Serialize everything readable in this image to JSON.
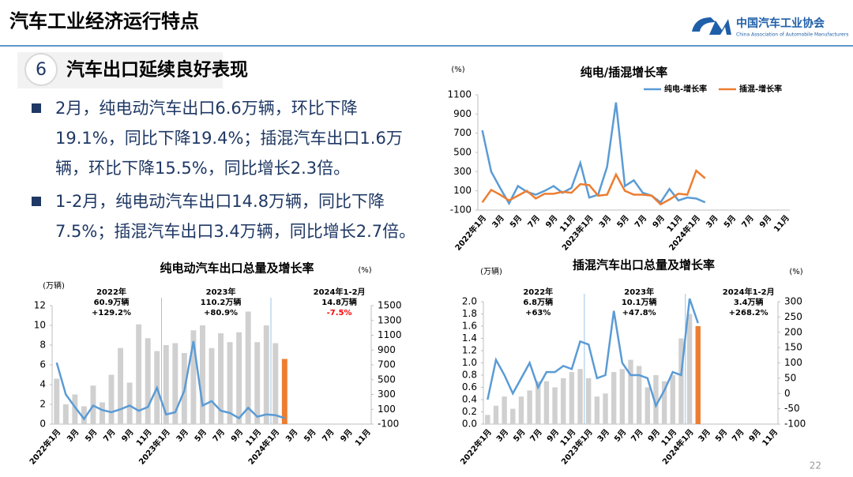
{
  "header": {
    "title": "汽车工业经济运行特点",
    "logo_cn": "中国汽车工业协会",
    "logo_en": "China Association of Automobile Manufacturers"
  },
  "section": {
    "number": "6",
    "title": "汽车出口延续良好表现"
  },
  "bullets": [
    "2月，纯电动汽车出口6.6万辆，环比下降19.1%，同比下降19.4%；插混汽车出口1.6万辆，环比下降15.5%，同比增长2.3倍。",
    "1-2月，纯电动汽车出口14.8万辆，同比下降7.5%；插混汽车出口3.4万辆，同比增长2.7倍。"
  ],
  "page_number": "22",
  "chart_data": [
    {
      "type": "line",
      "title": "纯电/插混增长率",
      "y_label": "(%)",
      "categories": [
        "2022年1月",
        null,
        "3月",
        null,
        "5月",
        null,
        "7月",
        null,
        "9月",
        null,
        "11月",
        null,
        "2023年1月",
        null,
        "3月",
        null,
        "5月",
        null,
        "7月",
        null,
        "9月",
        null,
        "11月",
        null,
        "2024年1月",
        null,
        "3月",
        null,
        "5月",
        null,
        "7月",
        null,
        "9月",
        null,
        "11月"
      ],
      "ylim": [
        -100,
        1100
      ],
      "yticks": [
        -100,
        100,
        300,
        500,
        700,
        900,
        1100
      ],
      "legend": "top-right",
      "series": [
        {
          "name": "纯电-增长率",
          "color": "#5b9bd5",
          "values": [
            730,
            300,
            130,
            -30,
            150,
            90,
            60,
            100,
            150,
            80,
            130,
            390,
            30,
            60,
            350,
            1020,
            150,
            210,
            80,
            50,
            -20,
            120,
            0,
            30,
            20,
            -19.4,
            null,
            null,
            null,
            null,
            null,
            null,
            null,
            null,
            null
          ]
        },
        {
          "name": "插混-增长率",
          "color": "#ed7d31",
          "values": [
            -20,
            110,
            60,
            0,
            50,
            100,
            20,
            70,
            70,
            90,
            80,
            170,
            160,
            50,
            60,
            270,
            100,
            60,
            60,
            50,
            -40,
            10,
            70,
            60,
            310,
            230,
            null,
            null,
            null,
            null,
            null,
            null,
            null,
            null,
            null
          ]
        }
      ]
    },
    {
      "type": "combo",
      "title": "纯电动汽车出口总量及增长率",
      "y_label": "(万辆)",
      "y2_label": "(%)",
      "categories": [
        "2022年1月",
        null,
        "3月",
        null,
        "5月",
        null,
        "7月",
        null,
        "9月",
        null,
        "11月",
        null,
        "2023年1月",
        null,
        "3月",
        null,
        "5月",
        null,
        "7月",
        null,
        "9月",
        null,
        "11月",
        null,
        "2024年1月",
        null,
        "3月",
        null,
        "5月",
        null,
        "7月",
        null,
        "9月",
        null,
        "11月"
      ],
      "ylim": [
        0,
        12
      ],
      "yticks": [
        0,
        2,
        4,
        6,
        8,
        10,
        12
      ],
      "y2lim": [
        -100,
        1500
      ],
      "y2ticks": [
        -100,
        100,
        300,
        500,
        700,
        900,
        1100,
        1300,
        1500
      ],
      "series": [
        {
          "type": "bar",
          "color": "#d0d0d0",
          "values": [
            4.6,
            2.0,
            3.0,
            1.8,
            3.9,
            2.2,
            5.0,
            7.7,
            4.2,
            10.1,
            8.7,
            7.4,
            8.0,
            8.2,
            7.2,
            9.5,
            10.0,
            7.7,
            9.2,
            8.3,
            9.3,
            11.4,
            8.3,
            10.0,
            8.2,
            null,
            null,
            null,
            null,
            null,
            null,
            null,
            null,
            null,
            null
          ]
        },
        {
          "type": "bar",
          "color": "#ed7d31",
          "values": [
            null,
            null,
            null,
            null,
            null,
            null,
            null,
            null,
            null,
            null,
            null,
            null,
            null,
            null,
            null,
            null,
            null,
            null,
            null,
            null,
            null,
            null,
            null,
            null,
            null,
            6.6,
            null,
            null,
            null,
            null,
            null,
            null,
            null,
            null,
            null
          ]
        },
        {
          "type": "line",
          "axis": "y2",
          "color": "#5b9bd5",
          "values": [
            730,
            300,
            130,
            -30,
            150,
            90,
            60,
            100,
            150,
            80,
            130,
            390,
            30,
            60,
            350,
            1020,
            150,
            210,
            80,
            50,
            -20,
            120,
            0,
            30,
            20,
            -19.4,
            null,
            null,
            null,
            null,
            null,
            null,
            null,
            null,
            null
          ]
        }
      ],
      "annotations": [
        {
          "lines": [
            "2022年",
            "60.9万辆"
          ],
          "change": "+129.2%"
        },
        {
          "lines": [
            "2023年",
            "110.2万辆"
          ],
          "change": "+80.9%"
        },
        {
          "lines": [
            "2024年1-2月",
            "14.8万辆"
          ],
          "change": "-7.5%",
          "change_color": "#ff0000"
        }
      ]
    },
    {
      "type": "combo",
      "title": "插混汽车出口总量及增长率",
      "y_label": "(万辆)",
      "y2_label": "(%)",
      "categories": [
        "2022年1月",
        null,
        "3月",
        null,
        "5月",
        null,
        "7月",
        null,
        "9月",
        null,
        "11月",
        null,
        "2023年1月",
        null,
        "3月",
        null,
        "5月",
        null,
        "7月",
        null,
        "9月",
        null,
        "11月",
        null,
        "2024年1月",
        null,
        "3月",
        null,
        "5月",
        null,
        "7月",
        null,
        "9月",
        null,
        "11月"
      ],
      "ylim": [
        0,
        2
      ],
      "yticks": [
        {
          "value": 0,
          "label": "0.0"
        },
        0.2,
        0.4,
        0.6,
        0.8,
        {
          "value": 1,
          "label": "1.0"
        },
        1.2,
        1.4,
        1.6,
        1.8,
        {
          "value": 2,
          "label": "2.0"
        }
      ],
      "y2lim": [
        -100,
        300
      ],
      "y2ticks": [
        -100,
        -50,
        0,
        50,
        100,
        150,
        200,
        250,
        300
      ],
      "series": [
        {
          "type": "bar",
          "color": "#d0d0d0",
          "values": [
            0.15,
            0.3,
            0.45,
            0.25,
            0.45,
            0.55,
            0.7,
            0.7,
            0.6,
            0.75,
            0.85,
            0.9,
            0.75,
            0.45,
            0.5,
            0.85,
            0.9,
            1.05,
            0.95,
            0.6,
            0.8,
            0.7,
            0.8,
            1.4,
            1.8,
            null,
            null,
            null,
            null,
            null,
            null,
            null,
            null,
            null,
            null
          ]
        },
        {
          "type": "bar",
          "color": "#ed7d31",
          "values": [
            null,
            null,
            null,
            null,
            null,
            null,
            null,
            null,
            null,
            null,
            null,
            null,
            null,
            null,
            null,
            null,
            null,
            null,
            null,
            null,
            null,
            null,
            null,
            null,
            null,
            1.6,
            null,
            null,
            null,
            null,
            null,
            null,
            null,
            null,
            null
          ]
        },
        {
          "type": "line",
          "axis": "y2",
          "color": "#5b9bd5",
          "values": [
            -20,
            110,
            60,
            0,
            50,
            100,
            20,
            70,
            70,
            90,
            80,
            170,
            160,
            50,
            60,
            270,
            100,
            60,
            60,
            50,
            -40,
            10,
            70,
            60,
            310,
            230,
            null,
            null,
            null,
            null,
            null,
            null,
            null,
            null,
            null
          ]
        }
      ],
      "annotations": [
        {
          "lines": [
            "2022年",
            "6.8万辆"
          ],
          "change": "+63%"
        },
        {
          "lines": [
            "2023年",
            "10.1万辆"
          ],
          "change": "+47.8%"
        },
        {
          "lines": [
            "2024年1-2月",
            "3.4万辆"
          ],
          "change": "+268.2%"
        }
      ]
    }
  ]
}
